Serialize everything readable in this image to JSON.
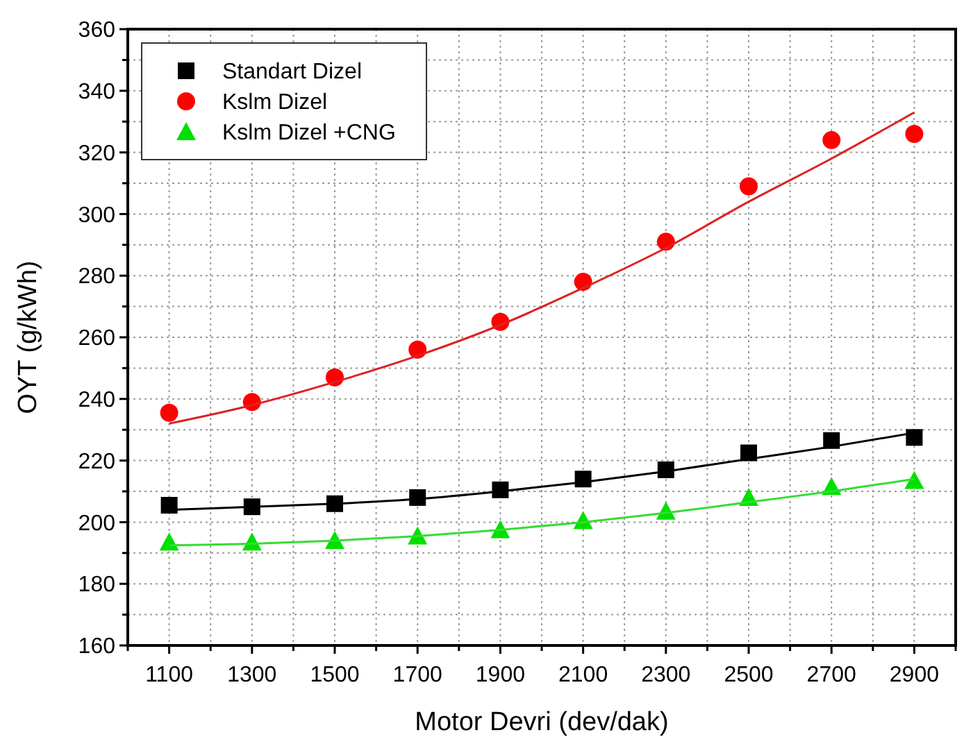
{
  "chart_data": {
    "type": "scatter",
    "xlabel": "Motor Devri (dev/dak)",
    "ylabel": "OYT (g/kWh)",
    "xlim": [
      1000,
      3000
    ],
    "ylim": [
      160,
      360
    ],
    "xticks": [
      {
        "value": 1000,
        "label": null
      },
      1100,
      {
        "value": 1200,
        "label": null
      },
      1300,
      {
        "value": 1400,
        "label": null
      },
      1500,
      {
        "value": 1600,
        "label": null
      },
      1700,
      {
        "value": 1800,
        "label": null
      },
      1900,
      {
        "value": 2000,
        "label": null
      },
      2100,
      {
        "value": 2200,
        "label": null
      },
      2300,
      {
        "value": 2400,
        "label": null
      },
      2500,
      {
        "value": 2600,
        "label": null
      },
      2700,
      {
        "value": 2800,
        "label": null
      },
      2900,
      {
        "value": 3000,
        "label": null
      }
    ],
    "yticks": [
      160,
      {
        "value": 170,
        "label": null
      },
      180,
      {
        "value": 190,
        "label": null
      },
      200,
      {
        "value": 210,
        "label": null
      },
      220,
      {
        "value": 230,
        "label": null
      },
      240,
      {
        "value": 250,
        "label": null
      },
      260,
      {
        "value": 270,
        "label": null
      },
      280,
      {
        "value": 290,
        "label": null
      },
      300,
      {
        "value": 310,
        "label": null
      },
      320,
      {
        "value": 330,
        "label": null
      },
      340,
      {
        "value": 350,
        "label": null
      },
      360
    ],
    "grid": true,
    "legend": "top left",
    "x": [
      1100,
      1300,
      1500,
      1700,
      1900,
      2100,
      2300,
      2500,
      2700,
      2900
    ],
    "series": [
      {
        "name": "Standart Dizel",
        "color": "#000000",
        "marker": "square",
        "values": [
          205.5,
          205,
          206,
          208,
          210.5,
          214,
          217,
          222.5,
          226.5,
          227.5
        ]
      },
      {
        "name": "Kslm Dizel",
        "color": "#ff0000",
        "marker": "circle",
        "values": [
          235.5,
          239,
          247,
          256,
          265,
          278,
          291,
          309,
          324,
          326
        ]
      },
      {
        "name": "Kslm Dizel +CNG",
        "color": "#00e000",
        "marker": "triangle",
        "values": [
          193.5,
          193.5,
          194,
          195.5,
          197.5,
          200.5,
          203.5,
          208,
          211.5,
          213.5
        ]
      },
      {
        "type": "line",
        "color": "#000000",
        "marker": "none",
        "values": [
          204,
          205,
          206,
          207.5,
          210,
          213,
          216.5,
          220.5,
          224.5,
          229
        ]
      },
      {
        "type": "line",
        "color": "#dd2222",
        "marker": "none",
        "values": [
          232,
          238,
          245.5,
          254,
          264,
          276,
          289,
          304,
          318,
          333
        ]
      },
      {
        "type": "line",
        "color": "#33dd33",
        "marker": "none",
        "values": [
          192.5,
          193,
          194,
          195.5,
          197.5,
          200,
          203,
          206.5,
          210,
          214
        ]
      }
    ]
  }
}
